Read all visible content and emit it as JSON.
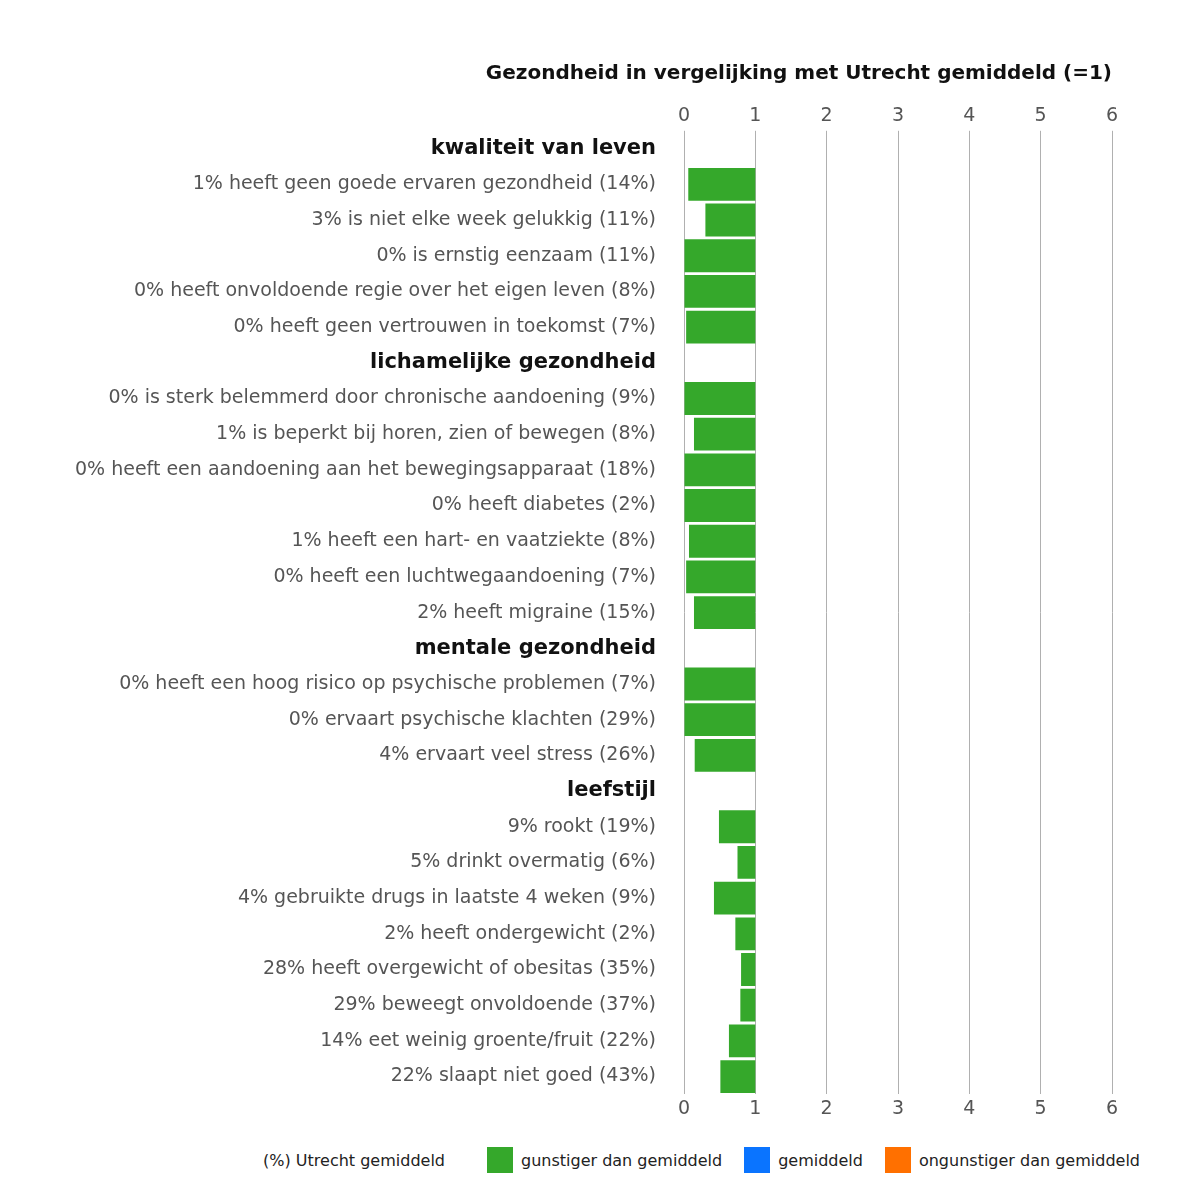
{
  "chart_data": {
    "type": "bar",
    "orientation": "horizontal",
    "title": "Gezondheid in vergelijking met Utrecht gemiddeld (=1)",
    "base": 1,
    "xlim": [
      0,
      6
    ],
    "xticks": [
      0,
      1,
      2,
      3,
      4,
      5,
      6
    ],
    "grid": true,
    "legend": "bottom",
    "legend_title": "(%) Utrecht gemiddeld",
    "series": [
      {
        "name": "gunstiger dan gemiddeld",
        "color": "#35a82b"
      },
      {
        "name": "gemiddeld",
        "color": "#0a74ff"
      },
      {
        "name": "ongunstiger dan gemiddeld",
        "color": "#ff7000"
      }
    ],
    "groups": [
      {
        "label": "kwaliteit van leven",
        "categories": [
          "1% heeft geen goede ervaren gezondheid (14%)",
          "3% is niet elke week gelukkig (11%)",
          "0% is ernstig eenzaam (11%)",
          "0% heeft onvoldoende regie over het eigen leven (8%)",
          "0% heeft geen vertrouwen in toekomst (7%)"
        ],
        "values": [
          0.06,
          0.3,
          0.0,
          0.0,
          0.03
        ]
      },
      {
        "label": "lichamelijke gezondheid",
        "categories": [
          "0% is sterk belemmerd door chronische aandoening (9%)",
          "1% is beperkt bij horen, zien of bewegen (8%)",
          "0% heeft een aandoening aan het bewegingsapparaat (18%)",
          "0% heeft diabetes (2%)",
          "1% heeft een hart- en vaatziekte (8%)",
          "0% heeft een luchtwegaandoening (7%)",
          "2% heeft migraine (15%)"
        ],
        "values": [
          0.0,
          0.14,
          0.0,
          0.0,
          0.07,
          0.03,
          0.14
        ]
      },
      {
        "label": "mentale gezondheid",
        "categories": [
          "0% heeft een hoog risico op psychische problemen (7%)",
          "0% ervaart psychische klachten (29%)",
          "4% ervaart veel stress (26%)"
        ],
        "values": [
          0.0,
          0.0,
          0.15
        ]
      },
      {
        "label": "leefstijl",
        "categories": [
          "9% rookt (19%)",
          "5% drinkt overmatig (6%)",
          "4% gebruikte drugs in laatste 4 weken (9%)",
          "2% heeft ondergewicht (2%)",
          "28% heeft overgewicht of obesitas (35%)",
          "29% beweegt onvoldoende (37%)",
          "14% eet weinig groente/fruit (22%)",
          "22% slaapt niet goed (43%)"
        ],
        "values": [
          0.49,
          0.75,
          0.42,
          0.72,
          0.8,
          0.79,
          0.63,
          0.51
        ]
      }
    ]
  }
}
